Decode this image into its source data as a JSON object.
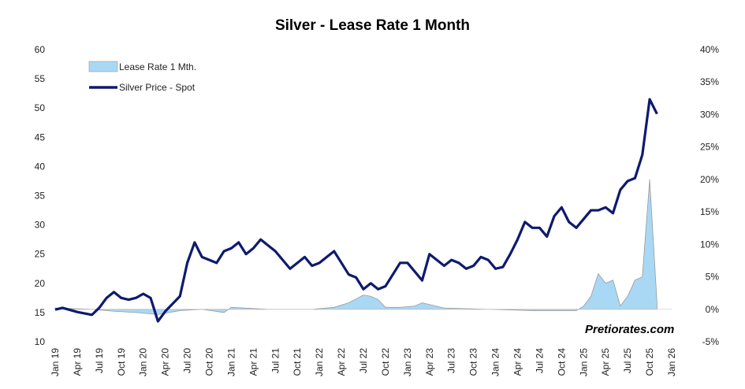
{
  "chart_data": {
    "type": "line",
    "title": "Silver - Lease Rate 1 Month",
    "watermark": "Pretiorates.com",
    "colors": {
      "price": "#0d1a6e",
      "lease_fill": "#a9d8f5",
      "lease_edge": "#9a9a9a"
    },
    "left_axis": {
      "ylim": [
        10,
        60
      ],
      "ticks": [
        "10",
        "15",
        "20",
        "25",
        "30",
        "35",
        "40",
        "45",
        "50",
        "55",
        "60"
      ]
    },
    "right_axis": {
      "ylim": [
        -5,
        40
      ],
      "ticks": [
        "-5%",
        "0%",
        "5%",
        "10%",
        "15%",
        "20%",
        "25%",
        "30%",
        "35%",
        "40%"
      ]
    },
    "x_ticks": [
      "Jan 19",
      "Apr 19",
      "Jul 19",
      "Oct 19",
      "Jan 20",
      "Apr 20",
      "Jul 20",
      "Oct 20",
      "Jan 21",
      "Apr 21",
      "Jul 21",
      "Oct 21",
      "Jan 22",
      "Apr 22",
      "Jul 22",
      "Oct 22",
      "Jan 23",
      "Apr 23",
      "Jul 23",
      "Oct 23",
      "Jan 24",
      "Apr 24",
      "Jul 24",
      "Oct 24",
      "Jan 25",
      "Apr 25",
      "Jul 25",
      "Oct 25",
      "Jan 26"
    ],
    "legend": {
      "placement": "top-left"
    },
    "series": [
      {
        "name": "Silver Price - Spot",
        "axis": "left",
        "x": [
          "2019-01",
          "2019-02",
          "2019-04",
          "2019-06",
          "2019-07",
          "2019-08",
          "2019-09",
          "2019-10",
          "2019-11",
          "2019-12",
          "2020-01",
          "2020-02",
          "2020-03",
          "2020-04",
          "2020-05",
          "2020-06",
          "2020-07",
          "2020-08",
          "2020-09",
          "2020-10",
          "2020-11",
          "2020-12",
          "2021-01",
          "2021-02",
          "2021-03",
          "2021-04",
          "2021-05",
          "2021-06",
          "2021-07",
          "2021-08",
          "2021-09",
          "2021-10",
          "2021-11",
          "2021-12",
          "2022-01",
          "2022-02",
          "2022-03",
          "2022-04",
          "2022-05",
          "2022-06",
          "2022-07",
          "2022-08",
          "2022-09",
          "2022-10",
          "2022-11",
          "2022-12",
          "2023-01",
          "2023-02",
          "2023-03",
          "2023-04",
          "2023-05",
          "2023-06",
          "2023-07",
          "2023-08",
          "2023-09",
          "2023-10",
          "2023-11",
          "2023-12",
          "2024-01",
          "2024-02",
          "2024-03",
          "2024-04",
          "2024-05",
          "2024-06",
          "2024-07",
          "2024-08",
          "2024-09",
          "2024-10",
          "2024-11",
          "2024-12",
          "2025-01",
          "2025-02",
          "2025-03",
          "2025-04",
          "2025-05",
          "2025-06",
          "2025-07",
          "2025-08",
          "2025-09",
          "2025-10",
          "2025-11"
        ],
        "y": [
          15.5,
          15.8,
          15.1,
          14.6,
          15.8,
          17.5,
          18.5,
          17.5,
          17.2,
          17.5,
          18.2,
          17.5,
          13.5,
          15.2,
          16.5,
          17.8,
          23.5,
          27.0,
          24.5,
          24.0,
          23.5,
          25.5,
          26.0,
          27.0,
          25.0,
          26.0,
          27.5,
          26.5,
          25.5,
          24.0,
          22.5,
          23.5,
          24.5,
          23.0,
          23.5,
          24.5,
          25.5,
          23.5,
          21.5,
          21.0,
          19.0,
          20.0,
          19.0,
          19.5,
          21.5,
          23.5,
          23.5,
          22.0,
          20.5,
          25.0,
          24.0,
          23.0,
          24.0,
          23.5,
          22.5,
          23.0,
          24.5,
          24.0,
          22.5,
          22.8,
          25.0,
          27.5,
          30.5,
          29.5,
          29.5,
          28.0,
          31.5,
          33.0,
          30.5,
          29.5,
          31.0,
          32.5,
          32.5,
          33.0,
          32.0,
          36.0,
          37.5,
          38.0,
          42.0,
          51.5,
          49.0
        ]
      },
      {
        "name": "Lease Rate 1 Mth.",
        "axis": "right",
        "x": [
          "2019-01",
          "2019-06",
          "2019-09",
          "2019-12",
          "2020-03",
          "2020-06",
          "2020-09",
          "2020-12",
          "2021-01",
          "2021-06",
          "2021-12",
          "2022-03",
          "2022-05",
          "2022-07",
          "2022-08",
          "2022-09",
          "2022-10",
          "2022-12",
          "2023-02",
          "2023-03",
          "2023-06",
          "2023-12",
          "2024-06",
          "2024-12",
          "2025-01",
          "2025-02",
          "2025-03",
          "2025-04",
          "2025-05",
          "2025-06",
          "2025-07",
          "2025-08",
          "2025-09",
          "2025-10",
          "2025-11"
        ],
        "y": [
          0.2,
          0.0,
          -0.3,
          -0.5,
          -0.8,
          -0.2,
          0.0,
          -0.5,
          0.3,
          0.0,
          0.0,
          0.3,
          1.0,
          2.2,
          2.0,
          1.5,
          0.3,
          0.3,
          0.5,
          1.0,
          0.2,
          0.0,
          -0.2,
          -0.2,
          0.5,
          2.0,
          5.5,
          4.0,
          4.5,
          0.5,
          2.0,
          4.5,
          5.0,
          20.0,
          1.0
        ]
      }
    ]
  }
}
